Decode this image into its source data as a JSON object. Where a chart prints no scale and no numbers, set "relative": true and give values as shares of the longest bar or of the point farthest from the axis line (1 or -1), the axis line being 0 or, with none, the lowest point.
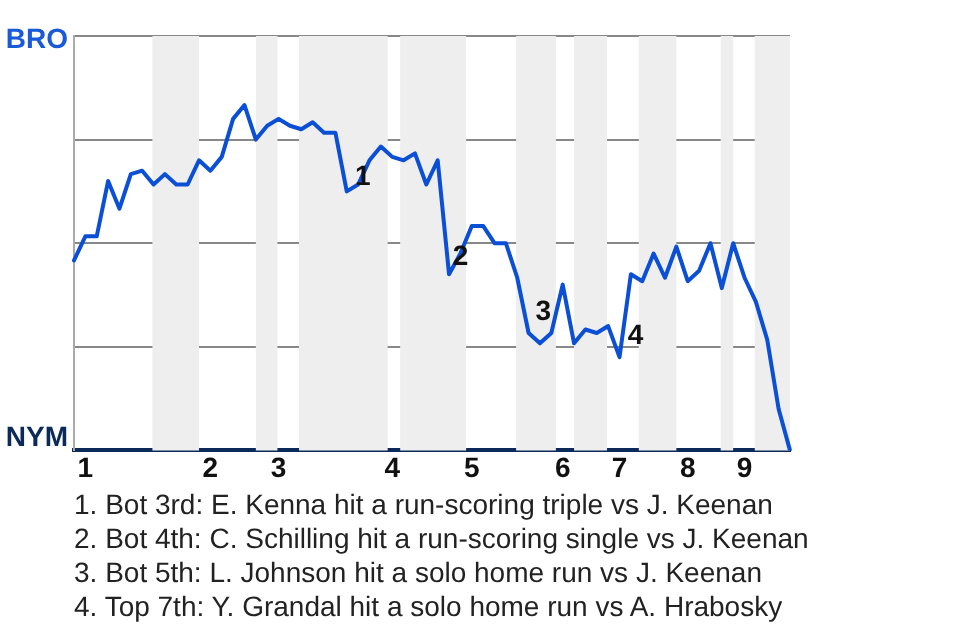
{
  "chart_data": {
    "type": "line",
    "relative": true,
    "categories": [
      null,
      "1",
      null,
      null,
      null,
      null,
      null,
      null,
      null,
      null,
      null,
      null,
      "2",
      null,
      null,
      null,
      null,
      null,
      "3",
      null,
      null,
      null,
      null,
      null,
      null,
      null,
      null,
      null,
      "4",
      null,
      null,
      null,
      null,
      null,
      null,
      "5",
      null,
      null,
      null,
      null,
      null,
      null,
      null,
      "6",
      null,
      null,
      null,
      null,
      "7",
      null,
      null,
      null,
      null,
      null,
      "8",
      null,
      null,
      null,
      null,
      "9",
      null,
      null,
      null,
      null
    ],
    "series": [
      {
        "color": "#0a4fd6",
        "values": [
          0.55,
          0.62,
          0.62,
          0.78,
          0.7,
          0.8,
          0.81,
          0.77,
          0.8,
          0.77,
          0.77,
          0.84,
          0.81,
          0.85,
          0.96,
          1,
          0.9,
          0.94,
          0.96,
          0.94,
          0.93,
          0.95,
          0.92,
          0.92,
          0.75,
          0.77,
          0.84,
          0.88,
          0.85,
          0.84,
          0.86,
          0.77,
          0.84,
          0.51,
          0.57,
          0.65,
          0.65,
          0.6,
          0.6,
          0.5,
          0.34,
          0.31,
          0.34,
          0.48,
          0.31,
          0.35,
          0.34,
          0.36,
          0.27,
          0.51,
          0.49,
          0.57,
          0.5,
          0.59,
          0.49,
          0.52,
          0.6,
          0.47,
          0.6,
          0.5,
          0.43,
          0.32,
          0.12,
          0
        ]
      }
    ],
    "grid": "y",
    "legend": false,
    "marker": "none",
    "line_style": "solid",
    "annotations": [
      "BRO",
      "NYM",
      "1",
      "2",
      "3",
      "4",
      "1. Bot 3rd: E. Kenna hit a run-scoring triple vs J. Keenan",
      "2. Bot 4th: C. Schilling hit a run-scoring single vs J. Keenan",
      "3. Bot 5th: L. Johnson hit a solo home run vs J. Keenan",
      "4. Top 7th: Y. Grandal hit a solo home run vs A. Hrabosky"
    ]
  }
}
